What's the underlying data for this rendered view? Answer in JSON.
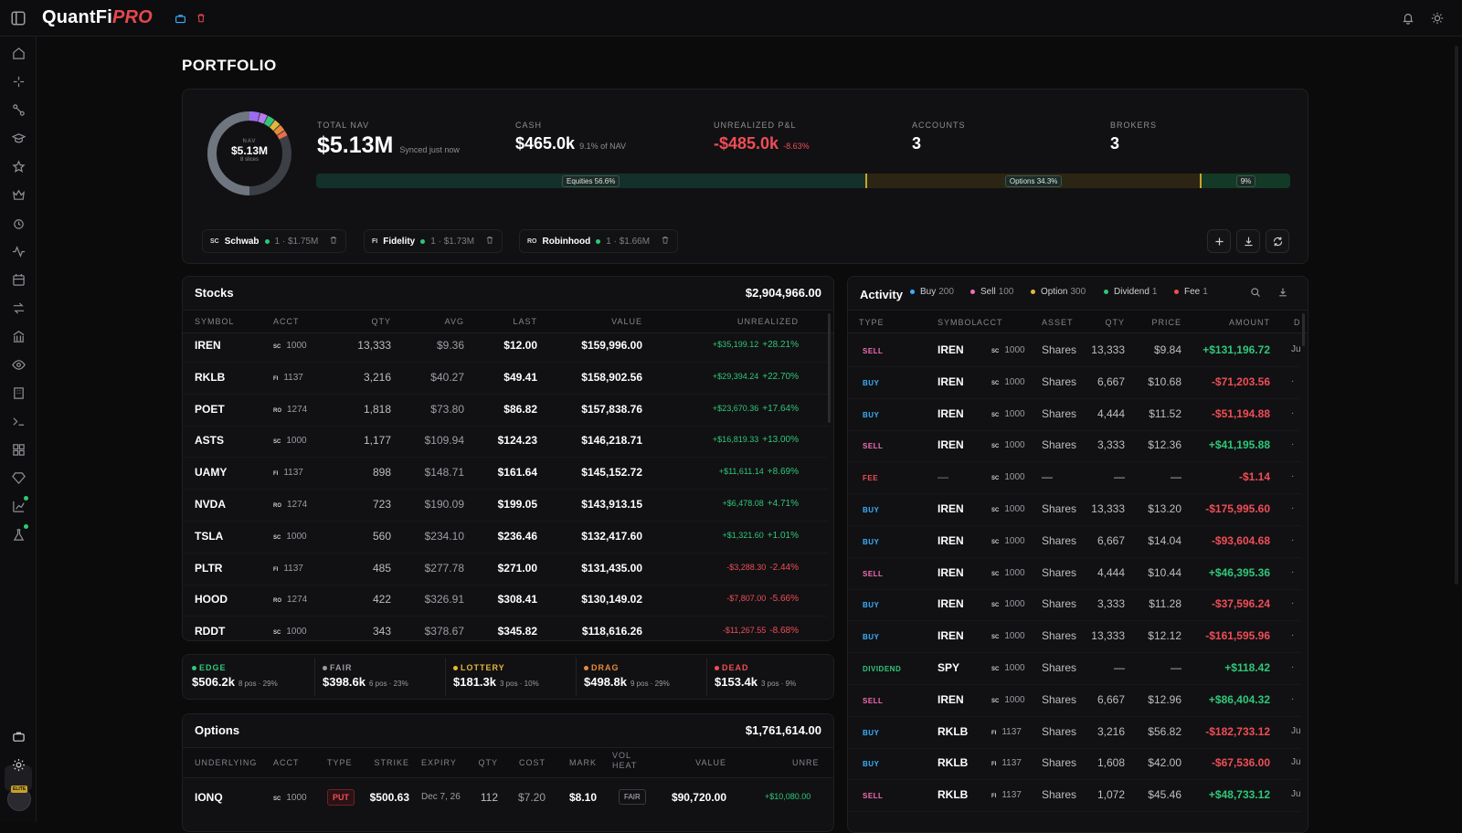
{
  "app": {
    "title_main": "QuantFi",
    "title_accent": "PRO"
  },
  "page": {
    "title": "PORTFOLIO"
  },
  "summary": {
    "donut": {
      "label": "NAV",
      "value": "$5.13M",
      "sub": "8 slices"
    },
    "total_nav": {
      "label": "TOTAL NAV",
      "value": "$5.13M",
      "note": "Synced just now"
    },
    "cash": {
      "label": "CASH",
      "value": "$465.0k",
      "note": "9.1% of NAV"
    },
    "unrealized": {
      "label": "UNREALIZED P&L",
      "value": "-$485.0k",
      "note": "-8.63%"
    },
    "accounts": {
      "label": "ACCOUNTS",
      "value": "3"
    },
    "brokers": {
      "label": "BROKERS",
      "value": "3"
    },
    "allocation": [
      {
        "label": "Equities 56.6%",
        "pct": 56.6,
        "color": "#14302a"
      },
      {
        "label": "Options 34.3%",
        "pct": 34.3,
        "color": "#2d2514"
      },
      {
        "label": "9%",
        "pct": 9.1,
        "color": "#133a26"
      }
    ]
  },
  "brokers": [
    {
      "abbr": "SC",
      "name": "Schwab",
      "info": "1 · $1.75M"
    },
    {
      "abbr": "FI",
      "name": "Fidelity",
      "info": "1 · $1.73M"
    },
    {
      "abbr": "RO",
      "name": "Robinhood",
      "info": "1 · $1.66M"
    }
  ],
  "stocks": {
    "title": "Stocks",
    "total": "$2,904,966.00",
    "headers": [
      "SYMBOL",
      "ACCT",
      "QTY",
      "AVG",
      "LAST",
      "VALUE",
      "UNREALIZED"
    ],
    "rows": [
      {
        "sym": "IREN",
        "ab": "SC",
        "acct": "1000",
        "qty": "13,333",
        "avg": "$9.36",
        "last": "$12.00",
        "value": "$159,996.00",
        "pl": "+$35,199.12",
        "pct": "+28.21%",
        "up": true
      },
      {
        "sym": "RKLB",
        "ab": "FI",
        "acct": "1137",
        "qty": "3,216",
        "avg": "$40.27",
        "last": "$49.41",
        "value": "$158,902.56",
        "pl": "+$29,394.24",
        "pct": "+22.70%",
        "up": true
      },
      {
        "sym": "POET",
        "ab": "RO",
        "acct": "1274",
        "qty": "1,818",
        "avg": "$73.80",
        "last": "$86.82",
        "value": "$157,838.76",
        "pl": "+$23,670.36",
        "pct": "+17.64%",
        "up": true
      },
      {
        "sym": "ASTS",
        "ab": "SC",
        "acct": "1000",
        "qty": "1,177",
        "avg": "$109.94",
        "last": "$124.23",
        "value": "$146,218.71",
        "pl": "+$16,819.33",
        "pct": "+13.00%",
        "up": true
      },
      {
        "sym": "UAMY",
        "ab": "FI",
        "acct": "1137",
        "qty": "898",
        "avg": "$148.71",
        "last": "$161.64",
        "value": "$145,152.72",
        "pl": "+$11,611.14",
        "pct": "+8.69%",
        "up": true
      },
      {
        "sym": "NVDA",
        "ab": "RO",
        "acct": "1274",
        "qty": "723",
        "avg": "$190.09",
        "last": "$199.05",
        "value": "$143,913.15",
        "pl": "+$6,478.08",
        "pct": "+4.71%",
        "up": true
      },
      {
        "sym": "TSLA",
        "ab": "SC",
        "acct": "1000",
        "qty": "560",
        "avg": "$234.10",
        "last": "$236.46",
        "value": "$132,417.60",
        "pl": "+$1,321.60",
        "pct": "+1.01%",
        "up": true
      },
      {
        "sym": "PLTR",
        "ab": "FI",
        "acct": "1137",
        "qty": "485",
        "avg": "$277.78",
        "last": "$271.00",
        "value": "$131,435.00",
        "pl": "-$3,288.30",
        "pct": "-2.44%",
        "up": false
      },
      {
        "sym": "HOOD",
        "ab": "RO",
        "acct": "1274",
        "qty": "422",
        "avg": "$326.91",
        "last": "$308.41",
        "value": "$130,149.02",
        "pl": "-$7,807.00",
        "pct": "-5.66%",
        "up": false
      },
      {
        "sym": "RDDT",
        "ab": "SC",
        "acct": "1000",
        "qty": "343",
        "avg": "$378.67",
        "last": "$345.82",
        "value": "$118,616.26",
        "pl": "-$11,267.55",
        "pct": "-8.68%",
        "up": false
      }
    ]
  },
  "categories": [
    {
      "name": "EDGE",
      "value": "$506.2k",
      "sub": "8 pos · 29%",
      "color": "#2fc77a"
    },
    {
      "name": "FAIR",
      "value": "$398.6k",
      "sub": "6 pos · 23%",
      "color": "#9a9aa2"
    },
    {
      "name": "LOTTERY",
      "value": "$181.3k",
      "sub": "3 pos · 10%",
      "color": "#e4b63a"
    },
    {
      "name": "DRAG",
      "value": "$498.8k",
      "sub": "9 pos · 29%",
      "color": "#e98a3a"
    },
    {
      "name": "DEAD",
      "value": "$153.4k",
      "sub": "3 pos · 9%",
      "color": "#ef4d56"
    }
  ],
  "options": {
    "title": "Options",
    "total": "$1,761,614.00",
    "headers": [
      "UNDERLYING",
      "ACCT",
      "TYPE",
      "STRIKE",
      "EXPIRY",
      "QTY",
      "COST",
      "MARK",
      "VOL HEAT",
      "VALUE",
      "UNRE"
    ],
    "rows": [
      {
        "sym": "IONQ",
        "ab": "SC",
        "acct": "1000",
        "type": "PUT",
        "strike": "$500.63",
        "expiry": "Dec 7, 26",
        "qty": "112",
        "cost": "$7.20",
        "mark": "$8.10",
        "heat": "FAIR",
        "value": "$90,720.00",
        "pl": "+$10,080.00"
      }
    ]
  },
  "activity": {
    "title": "Activity",
    "filters": [
      {
        "label": "Buy",
        "count": "200",
        "color": "#3ab0ff"
      },
      {
        "label": "Sell",
        "count": "100",
        "color": "#f06fb5"
      },
      {
        "label": "Option",
        "count": "300",
        "color": "#e4b63a"
      },
      {
        "label": "Dividend",
        "count": "1",
        "color": "#2fc77a"
      },
      {
        "label": "Fee",
        "count": "1",
        "color": "#ef4d56"
      }
    ],
    "headers": [
      "TYPE",
      "SYMBOL",
      "ACCT",
      "ASSET",
      "QTY",
      "PRICE",
      "AMOUNT",
      "D"
    ],
    "rows": [
      {
        "type": "SELL",
        "sym": "IREN",
        "ab": "SC",
        "acct": "1000",
        "asset": "Shares",
        "qty": "13,333",
        "price": "$9.84",
        "amount": "+$131,196.72",
        "up": true,
        "d": "Ju"
      },
      {
        "type": "BUY",
        "sym": "IREN",
        "ab": "SC",
        "acct": "1000",
        "asset": "Shares",
        "qty": "6,667",
        "price": "$10.68",
        "amount": "-$71,203.56",
        "up": false,
        "d": "·"
      },
      {
        "type": "BUY",
        "sym": "IREN",
        "ab": "SC",
        "acct": "1000",
        "asset": "Shares",
        "qty": "4,444",
        "price": "$11.52",
        "amount": "-$51,194.88",
        "up": false,
        "d": "·"
      },
      {
        "type": "SELL",
        "sym": "IREN",
        "ab": "SC",
        "acct": "1000",
        "asset": "Shares",
        "qty": "3,333",
        "price": "$12.36",
        "amount": "+$41,195.88",
        "up": true,
        "d": "·"
      },
      {
        "type": "FEE",
        "sym": "—",
        "ab": "SC",
        "acct": "1000",
        "asset": "—",
        "qty": "—",
        "price": "—",
        "amount": "-$1.14",
        "up": false,
        "d": "·"
      },
      {
        "type": "BUY",
        "sym": "IREN",
        "ab": "SC",
        "acct": "1000",
        "asset": "Shares",
        "qty": "13,333",
        "price": "$13.20",
        "amount": "-$175,995.60",
        "up": false,
        "d": "·"
      },
      {
        "type": "BUY",
        "sym": "IREN",
        "ab": "SC",
        "acct": "1000",
        "asset": "Shares",
        "qty": "6,667",
        "price": "$14.04",
        "amount": "-$93,604.68",
        "up": false,
        "d": "·"
      },
      {
        "type": "SELL",
        "sym": "IREN",
        "ab": "SC",
        "acct": "1000",
        "asset": "Shares",
        "qty": "4,444",
        "price": "$10.44",
        "amount": "+$46,395.36",
        "up": true,
        "d": "·"
      },
      {
        "type": "BUY",
        "sym": "IREN",
        "ab": "SC",
        "acct": "1000",
        "asset": "Shares",
        "qty": "3,333",
        "price": "$11.28",
        "amount": "-$37,596.24",
        "up": false,
        "d": "·"
      },
      {
        "type": "BUY",
        "sym": "IREN",
        "ab": "SC",
        "acct": "1000",
        "asset": "Shares",
        "qty": "13,333",
        "price": "$12.12",
        "amount": "-$161,595.96",
        "up": false,
        "d": "·"
      },
      {
        "type": "DIVIDEND",
        "sym": "SPY",
        "ab": "SC",
        "acct": "1000",
        "asset": "Shares",
        "qty": "—",
        "price": "—",
        "amount": "+$118.42",
        "up": true,
        "d": "·"
      },
      {
        "type": "SELL",
        "sym": "IREN",
        "ab": "SC",
        "acct": "1000",
        "asset": "Shares",
        "qty": "6,667",
        "price": "$12.96",
        "amount": "+$86,404.32",
        "up": true,
        "d": "·"
      },
      {
        "type": "BUY",
        "sym": "RKLB",
        "ab": "FI",
        "acct": "1137",
        "asset": "Shares",
        "qty": "3,216",
        "price": "$56.82",
        "amount": "-$182,733.12",
        "up": false,
        "d": "Ju"
      },
      {
        "type": "BUY",
        "sym": "RKLB",
        "ab": "FI",
        "acct": "1137",
        "asset": "Shares",
        "qty": "1,608",
        "price": "$42.00",
        "amount": "-$67,536.00",
        "up": false,
        "d": "Ju"
      },
      {
        "type": "SELL",
        "sym": "RKLB",
        "ab": "FI",
        "acct": "1137",
        "asset": "Shares",
        "qty": "1,072",
        "price": "$45.46",
        "amount": "+$48,733.12",
        "up": true,
        "d": "Ju"
      }
    ]
  }
}
